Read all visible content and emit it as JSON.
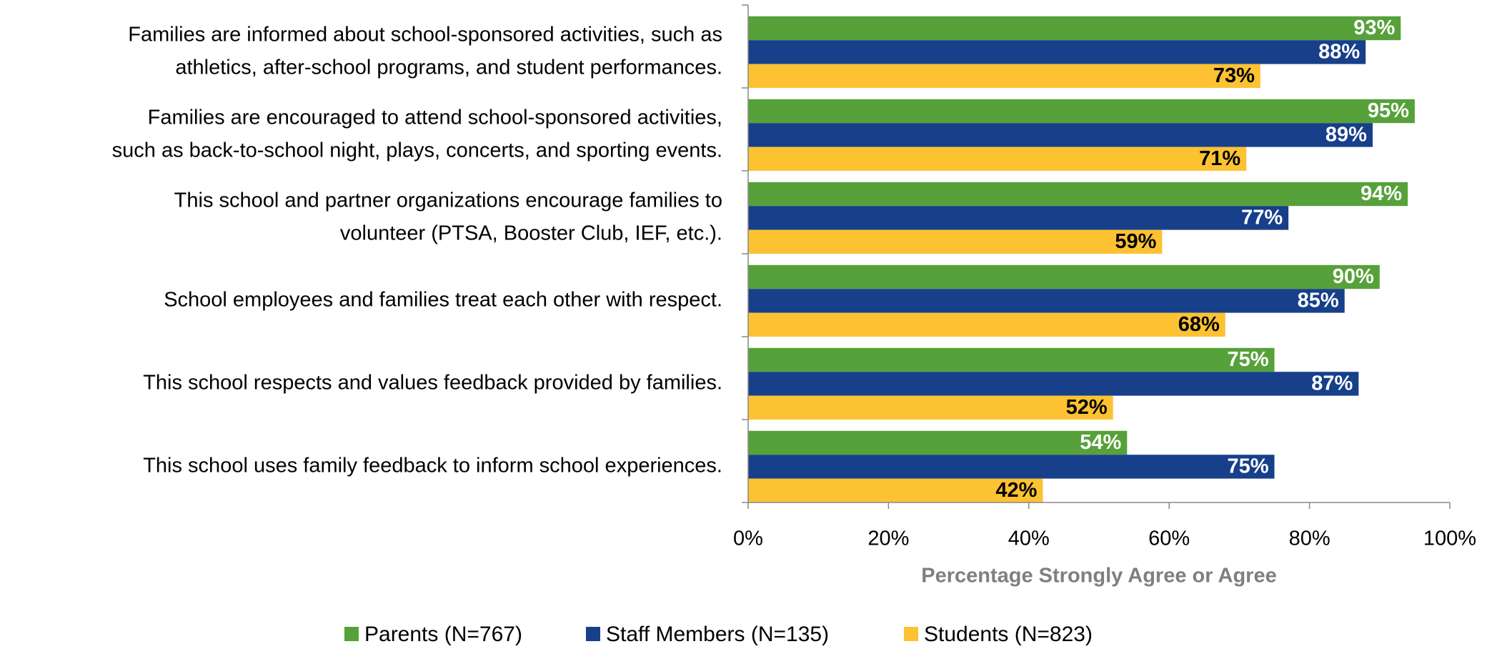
{
  "chart_data": {
    "type": "hbar",
    "categories": [
      [
        "Families are informed about school-sponsored activities, such as",
        "athletics, after-school programs, and student performances."
      ],
      [
        "Families are encouraged to attend school-sponsored activities,",
        "such as back-to-school night, plays, concerts, and sporting events."
      ],
      [
        "This school and partner organizations encourage families to",
        "volunteer (PTSA, Booster Club, IEF, etc.)."
      ],
      [
        "School employees and families treat each other with respect."
      ],
      [
        "This school respects and values feedback provided by families."
      ],
      [
        "This school uses family feedback to inform school experiences."
      ]
    ],
    "series": [
      {
        "name": "Parents (N=767)",
        "color": "#56a13a",
        "label_color": "#ffffff",
        "values": [
          93,
          95,
          94,
          90,
          75,
          54
        ],
        "value_labels": [
          "93%",
          "95%",
          "94%",
          "90%",
          "75%",
          "54%"
        ]
      },
      {
        "name": "Staff Members (N=135)",
        "color": "#173f8a",
        "label_color": "#ffffff",
        "values": [
          88,
          89,
          77,
          85,
          87,
          75
        ],
        "value_labels": [
          "88%",
          "89%",
          "77%",
          "85%",
          "87%",
          "75%"
        ]
      },
      {
        "name": "Students (N=823)",
        "color": "#fcc232",
        "label_color": "#000000",
        "values": [
          73,
          71,
          59,
          68,
          52,
          42
        ],
        "value_labels": [
          "73%",
          "71%",
          "59%",
          "68%",
          "52%",
          "42%"
        ]
      }
    ],
    "xlabel": "Percentage Strongly Agree or Agree",
    "xlim": [
      0,
      100
    ],
    "xticks": [
      {
        "value": 0,
        "label": "0%"
      },
      {
        "value": 20,
        "label": "20%"
      },
      {
        "value": 40,
        "label": "40%"
      },
      {
        "value": 60,
        "label": "60%"
      },
      {
        "value": 80,
        "label": "80%"
      },
      {
        "value": 100,
        "label": "100%"
      }
    ],
    "legend": "bottom"
  }
}
